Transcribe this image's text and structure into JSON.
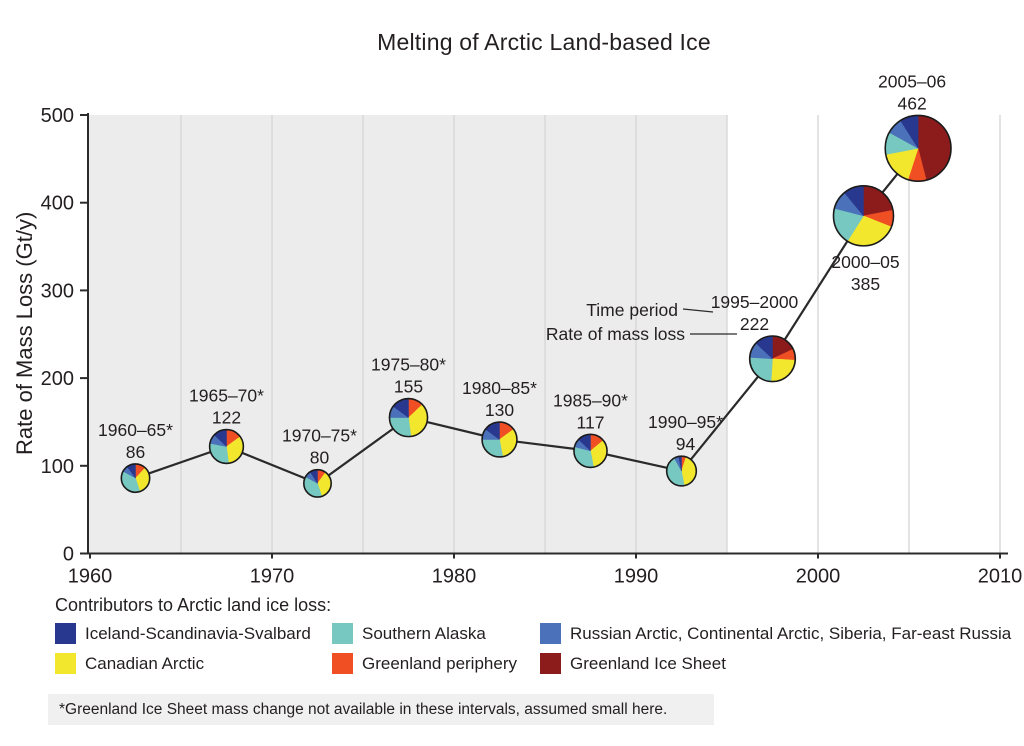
{
  "title": "Melting of Arctic Land-based Ice",
  "chart_data": {
    "type": "line",
    "subtype": "time-series line with pie-chart markers; pie area proportional to mass-loss rate",
    "title": "Melting of Arctic Land-based Ice",
    "xlabel": "",
    "ylabel": "Rate of Mass Loss (Gt/y)",
    "xlim": [
      1960,
      2010
    ],
    "ylim": [
      0,
      500
    ],
    "x_ticks": [
      1960,
      1970,
      1980,
      1990,
      2000,
      2010
    ],
    "y_ticks": [
      0,
      100,
      200,
      300,
      400,
      500
    ],
    "grid": "vertical gridlines every 5 years",
    "legend_position": "below chart",
    "shaded_region": {
      "from_year": 1960,
      "to_year": 1995,
      "fill": "#ececec",
      "meaning": "intervals where Greenland Ice Sheet mass change not available (starred periods)"
    },
    "series": [
      {
        "name": "Greenland Ice Sheet",
        "color": "#8c1b1c"
      },
      {
        "name": "Greenland periphery",
        "color": "#f04e23"
      },
      {
        "name": "Canadian Arctic",
        "color": "#f2e72c"
      },
      {
        "name": "Southern Alaska",
        "color": "#76c8c1"
      },
      {
        "name": "Russian Arctic, Continental Arctic, Siberia, Far-east Russia",
        "color": "#4a71b9"
      },
      {
        "name": "Iceland-Scandinavia-Svalbard",
        "color": "#28388f"
      }
    ],
    "series_note": "shares_pct arrays align with series[]; slices drawn clockwise from 12 o'clock",
    "points": [
      {
        "period": "1960–65*",
        "year_mid": 1962.5,
        "value": 86,
        "shares_pct": [
          0,
          12,
          33,
          38,
          7,
          10
        ],
        "label_pos": "above",
        "label_dx": 0
      },
      {
        "period": "1965–70*",
        "year_mid": 1967.5,
        "value": 122,
        "shares_pct": [
          0,
          15,
          33,
          30,
          9,
          13
        ],
        "label_pos": "above",
        "label_dx": 0
      },
      {
        "period": "1970–75*",
        "year_mid": 1972.5,
        "value": 80,
        "shares_pct": [
          0,
          10,
          35,
          38,
          8,
          9
        ],
        "label_pos": "above",
        "label_dx": 2
      },
      {
        "period": "1975–80*",
        "year_mid": 1977.5,
        "value": 155,
        "shares_pct": [
          0,
          13,
          35,
          27,
          10,
          15
        ],
        "label_pos": "above",
        "label_dx": 0
      },
      {
        "period": "1980–85*",
        "year_mid": 1982.5,
        "value": 130,
        "shares_pct": [
          0,
          15,
          32,
          28,
          10,
          15
        ],
        "label_pos": "above",
        "label_dx": 0
      },
      {
        "period": "1985–90*",
        "year_mid": 1987.5,
        "value": 117,
        "shares_pct": [
          0,
          14,
          33,
          32,
          8,
          13
        ],
        "label_pos": "above",
        "label_dx": 0
      },
      {
        "period": "1990–95*",
        "year_mid": 1992.5,
        "value": 94,
        "shares_pct": [
          0,
          5,
          42,
          45,
          5,
          3
        ],
        "label_pos": "above",
        "label_dx": 4
      },
      {
        "period": "1995–2000",
        "year_mid": 1997.5,
        "value": 222,
        "shares_pct": [
          18,
          8,
          25,
          25,
          11,
          13
        ],
        "label_pos": "above",
        "label_dx": -18
      },
      {
        "period": "2000–05",
        "year_mid": 2002.5,
        "value": 385,
        "shares_pct": [
          22,
          9,
          28,
          20,
          10,
          11
        ],
        "label_pos": "below",
        "label_dx": 2
      },
      {
        "period": "2005–06",
        "year_mid": 2005.5,
        "value": 462,
        "shares_pct": [
          46,
          9,
          17,
          11,
          8,
          9
        ],
        "label_pos": "above",
        "label_dx": -6
      }
    ],
    "annotations": [
      {
        "text": "Time period",
        "points_to": "period label of 1995–2000",
        "x": 678,
        "y": 316,
        "line": [
          683,
          309,
          713,
          312
        ]
      },
      {
        "text": "Rate of mass loss",
        "points_to": "value label of 1995–2000",
        "x": 685,
        "y": 340,
        "line": [
          690,
          334,
          737,
          334
        ]
      }
    ]
  },
  "legend": {
    "heading": "Contributors to Arctic land ice loss:",
    "items": [
      {
        "label": "Iceland-Scandinavia-Svalbard",
        "color": "#28388f"
      },
      {
        "label": "Southern Alaska",
        "color": "#76c8c1"
      },
      {
        "label": "Russian Arctic, Continental Arctic, Siberia, Far-east Russia",
        "color": "#4a71b9"
      },
      {
        "label": "Canadian Arctic",
        "color": "#f2e72c"
      },
      {
        "label": "Greenland periphery",
        "color": "#f04e23"
      },
      {
        "label": "Greenland Ice Sheet",
        "color": "#8c1b1c"
      }
    ]
  },
  "footnote": "*Greenland Ice Sheet mass change not available in these intervals, assumed small here.",
  "colors": {
    "text": "#231f20",
    "axis": "#2b2b2b",
    "data_line": "#2a2a2a",
    "gridline": "#d7d7d7",
    "shaded_region": "#ececec",
    "footnote_bg": "#f0f0f0",
    "pie_outline": "#1b1b1b"
  }
}
